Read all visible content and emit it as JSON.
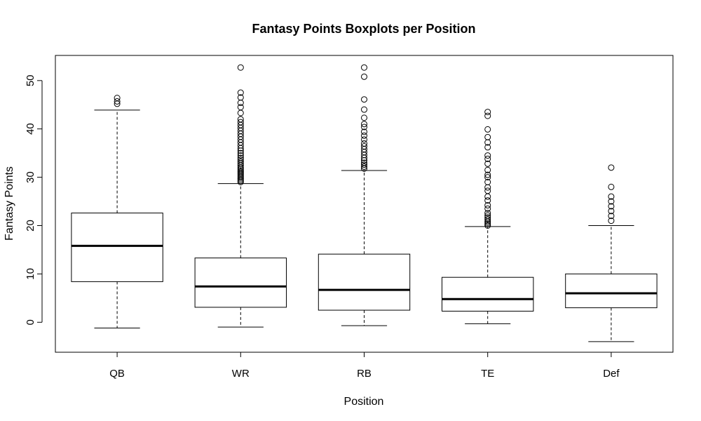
{
  "chart_data": {
    "type": "box",
    "title": "Fantasy Points Boxplots per Position",
    "xlabel": "Position",
    "ylabel": "Fantasy Points",
    "ylim": [
      -6.2,
      55.2
    ],
    "yticks": [
      0,
      10,
      20,
      30,
      40,
      50
    ],
    "grid": false,
    "legend": "none",
    "categories": [
      "QB",
      "WR",
      "RB",
      "TE",
      "Def"
    ],
    "boxes": [
      {
        "category": "QB",
        "whisker_low": -1.2,
        "q1": 8.4,
        "median": 15.8,
        "q3": 22.6,
        "whisker_high": 43.9,
        "outliers": [
          45.2,
          45.7,
          46.4
        ]
      },
      {
        "category": "WR",
        "whisker_low": -1.0,
        "q1": 3.1,
        "median": 7.4,
        "q3": 13.3,
        "whisker_high": 28.7,
        "outliers": [
          29.0,
          29.3,
          29.6,
          29.9,
          30.2,
          30.5,
          30.8,
          31.1,
          31.4,
          31.7,
          32.0,
          32.4,
          32.8,
          33.2,
          33.6,
          34.0,
          34.5,
          35.0,
          35.5,
          36.0,
          36.6,
          37.2,
          37.8,
          38.4,
          39.0,
          39.6,
          40.2,
          40.8,
          41.4,
          42.0,
          43.3,
          44.5,
          45.4,
          46.5,
          47.5,
          52.7
        ]
      },
      {
        "category": "RB",
        "whisker_low": -0.7,
        "q1": 2.5,
        "median": 6.7,
        "q3": 14.1,
        "whisker_high": 31.4,
        "outliers": [
          31.8,
          32.2,
          32.6,
          33.0,
          33.5,
          34.0,
          34.6,
          35.2,
          35.8,
          36.4,
          37.0,
          37.8,
          38.6,
          39.4,
          40.4,
          41.0,
          42.3,
          44.0,
          46.1,
          50.8,
          52.7
        ]
      },
      {
        "category": "TE",
        "whisker_low": -0.3,
        "q1": 2.3,
        "median": 4.8,
        "q3": 9.3,
        "whisker_high": 19.8,
        "outliers": [
          20.0,
          20.3,
          20.6,
          20.9,
          21.3,
          21.7,
          22.1,
          22.6,
          23.5,
          24.2,
          25.2,
          26.0,
          27.2,
          27.9,
          29.0,
          30.0,
          30.5,
          31.5,
          32.8,
          33.8,
          34.5,
          36.2,
          37.2,
          38.3,
          39.9,
          42.7,
          43.5
        ]
      },
      {
        "category": "Def",
        "whisker_low": -4.0,
        "q1": 3.0,
        "median": 6.0,
        "q3": 10.0,
        "whisker_high": 20.0,
        "outliers": [
          21.0,
          22.0,
          23.0,
          24.0,
          25.0,
          26.0,
          28.0,
          32.0
        ]
      }
    ]
  }
}
